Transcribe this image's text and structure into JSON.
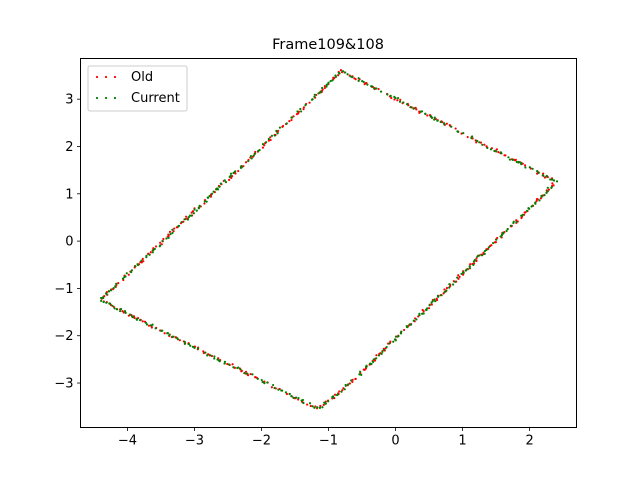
{
  "chart_data": {
    "type": "scatter",
    "title": "Frame109&108",
    "xlabel": "",
    "ylabel": "",
    "xlim": [
      -4.7,
      2.7
    ],
    "ylim": [
      -3.94,
      3.86
    ],
    "xticks": [
      -4,
      -3,
      -2,
      -1,
      0,
      1,
      2
    ],
    "yticks": [
      -3,
      -2,
      -1,
      0,
      1,
      2,
      3
    ],
    "grid": false,
    "legend_position": "top-left",
    "outline": [
      [
        -0.8,
        3.6
      ],
      [
        2.4,
        1.25
      ],
      [
        -0.75,
        -3.1
      ],
      [
        -1.15,
        -3.55
      ],
      [
        -4.4,
        -1.25
      ],
      [
        -0.8,
        3.6
      ]
    ],
    "series": [
      {
        "name": "Old",
        "color": "#ff0000",
        "seed": 11
      },
      {
        "name": "Current",
        "color": "#008000",
        "seed": 23
      }
    ]
  }
}
